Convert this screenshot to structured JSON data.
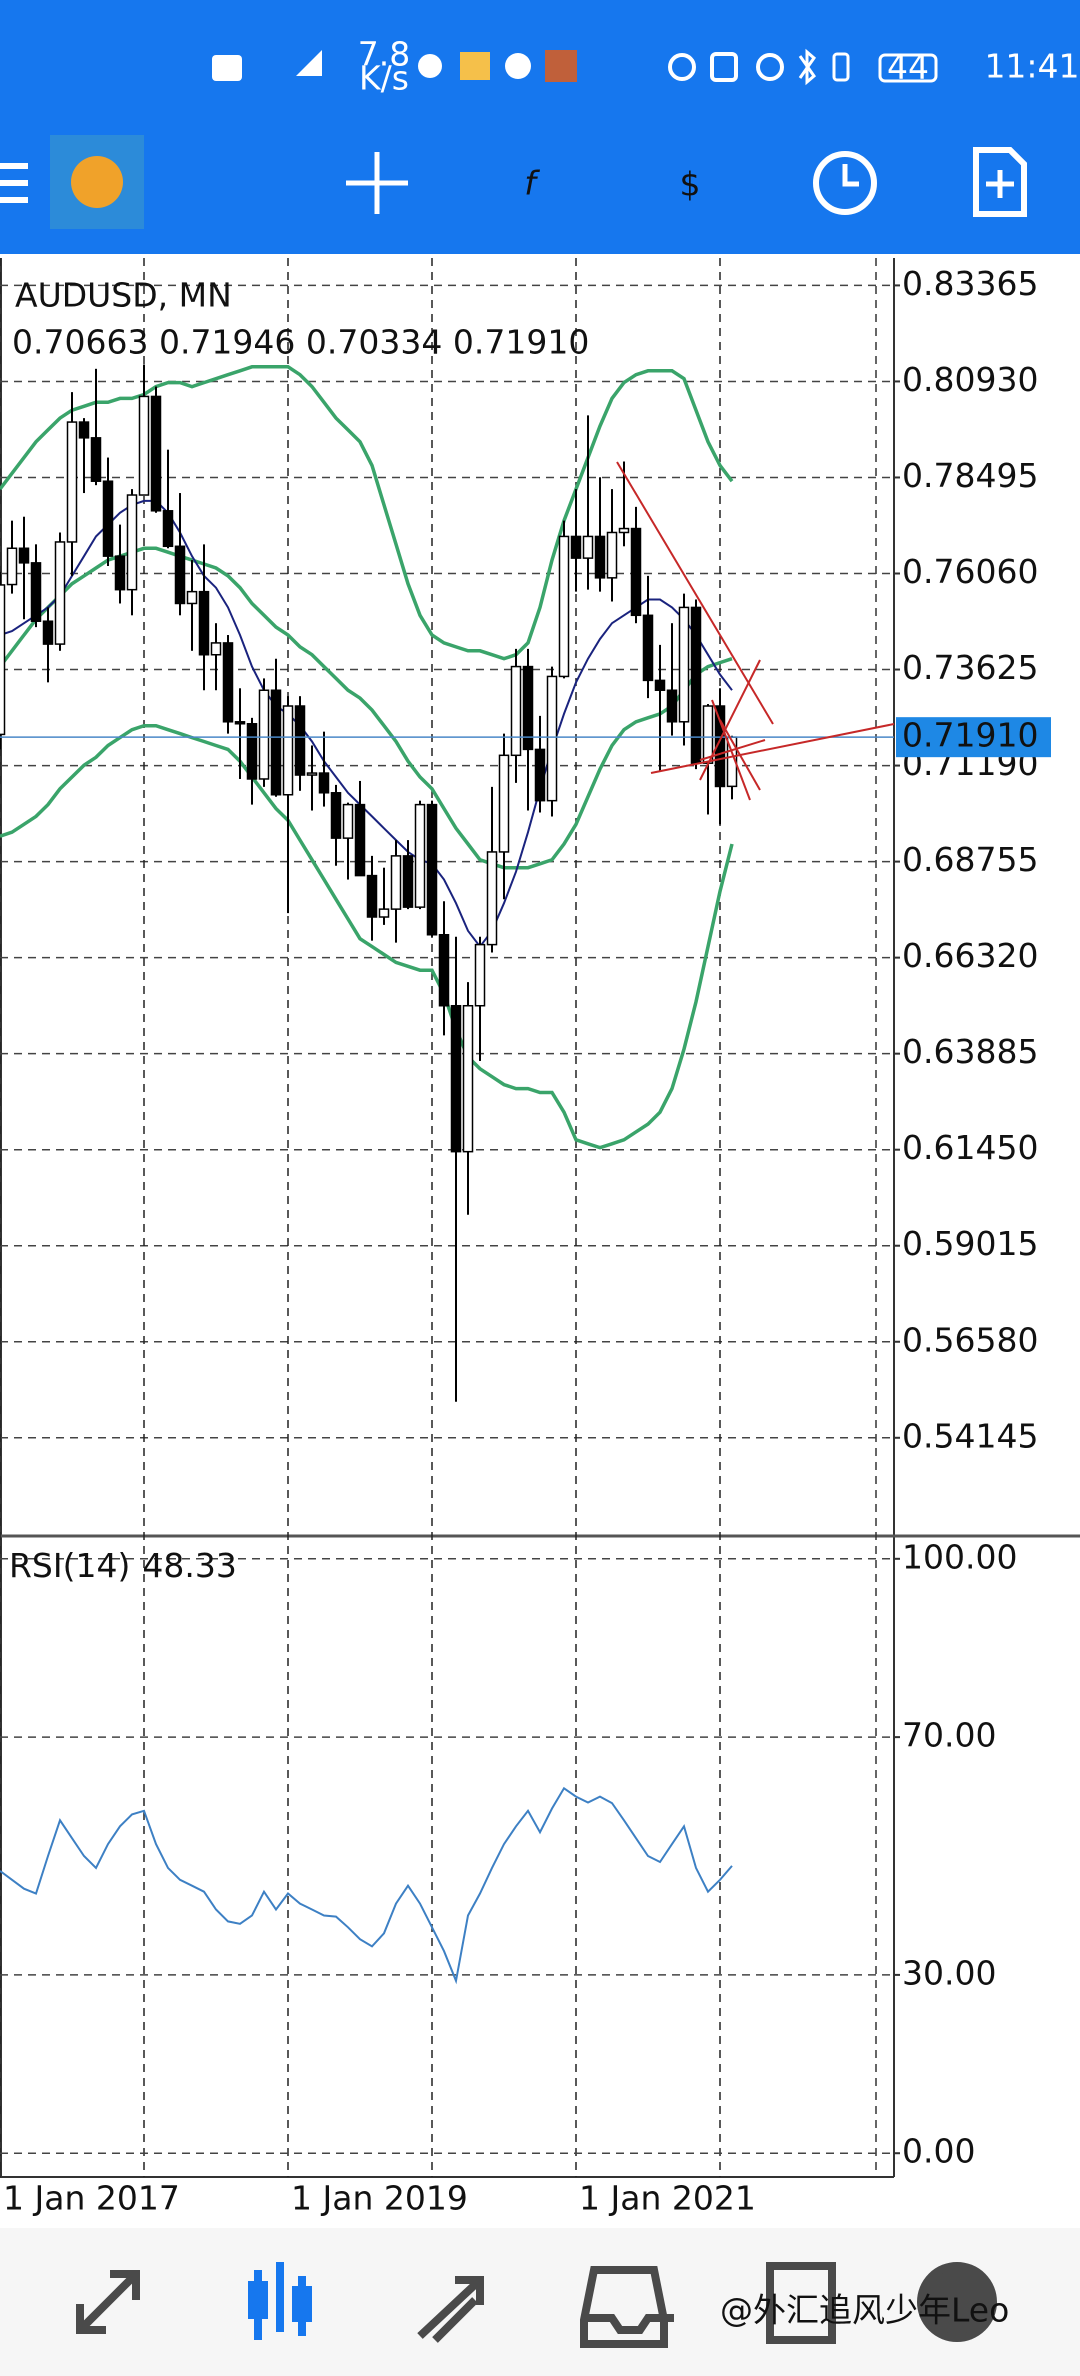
{
  "status_bar": {
    "speed": "7.8",
    "speed_unit": "K/s",
    "battery": "44",
    "time": "11:41"
  },
  "watermark": "@外汇追风少年Leo",
  "chart_data": [
    {
      "type": "candlestick",
      "title": "AUDUSD, MN",
      "ohlc_label": "0.70663 0.71946 0.70334 0.71910",
      "categories": [
        "1 Jan 2017",
        null,
        null,
        null,
        null,
        null,
        null,
        null,
        null,
        null,
        null,
        null,
        null,
        null,
        null,
        null,
        null,
        null,
        null,
        null,
        null,
        null,
        null,
        null,
        "1 Jan 2019",
        null,
        null,
        null,
        null,
        null,
        null,
        null,
        null,
        null,
        null,
        null,
        null,
        null,
        null,
        null,
        null,
        null,
        null,
        null,
        null,
        null,
        null,
        null,
        "1 Jan 2021",
        null,
        null,
        null,
        null,
        null,
        null,
        null,
        null,
        null,
        null,
        null,
        null,
        null
      ],
      "open": [
        0.7198,
        0.7578,
        0.767,
        0.7633,
        0.7485,
        0.7427,
        0.7686,
        0.799,
        0.795,
        0.784,
        0.765,
        0.7565,
        0.7805,
        0.8055,
        0.7765,
        0.7675,
        0.753,
        0.756,
        0.74,
        0.743,
        0.723,
        0.7225,
        0.7085,
        0.731,
        0.7045,
        0.727,
        0.7095,
        0.71,
        0.705,
        0.6935,
        0.702,
        0.684,
        0.6735,
        0.6755,
        0.689,
        0.676,
        0.702,
        0.669,
        0.651,
        0.614,
        0.651,
        0.6665,
        0.69,
        0.7145,
        0.737,
        0.716,
        0.703,
        0.7345,
        0.77,
        0.7645,
        0.77,
        0.7595,
        0.771,
        0.772,
        0.75,
        0.7335,
        0.731,
        0.723,
        0.752,
        0.7125,
        0.727,
        0.70663
      ],
      "high": [
        0.761,
        0.774,
        0.775,
        0.768,
        0.752,
        0.771,
        0.8066,
        0.8,
        0.8125,
        0.79,
        0.773,
        0.782,
        0.8136,
        0.808,
        0.792,
        0.781,
        0.764,
        0.768,
        0.748,
        0.745,
        0.7315,
        0.724,
        0.734,
        0.739,
        0.7295,
        0.7295,
        0.717,
        0.7205,
        0.707,
        0.7025,
        0.708,
        0.689,
        0.686,
        0.693,
        0.693,
        0.703,
        0.703,
        0.6775,
        0.6685,
        0.657,
        0.6685,
        0.7065,
        0.72,
        0.7415,
        0.7415,
        0.7245,
        0.737,
        0.774,
        0.782,
        0.8007,
        0.785,
        0.782,
        0.789,
        0.7775,
        0.76,
        0.7425,
        0.748,
        0.7555,
        0.754,
        0.7275,
        0.7315,
        0.71946
      ],
      "low": [
        0.716,
        0.7555,
        0.749,
        0.747,
        0.733,
        0.741,
        0.76,
        0.781,
        0.783,
        0.7625,
        0.753,
        0.75,
        0.781,
        0.776,
        0.767,
        0.75,
        0.741,
        0.731,
        0.731,
        0.72,
        0.7085,
        0.702,
        0.7065,
        0.704,
        0.6745,
        0.7055,
        0.7005,
        0.7015,
        0.6865,
        0.683,
        0.686,
        0.6675,
        0.6715,
        0.667,
        0.6755,
        0.6755,
        0.6685,
        0.6435,
        0.5506,
        0.598,
        0.637,
        0.6645,
        0.678,
        0.7075,
        0.7005,
        0.7,
        0.699,
        0.734,
        0.756,
        0.7565,
        0.756,
        0.7535,
        0.7675,
        0.748,
        0.729,
        0.7105,
        0.7195,
        0.717,
        0.711,
        0.6995,
        0.697,
        0.70334
      ],
      "close": [
        0.7577,
        0.767,
        0.7633,
        0.7485,
        0.7427,
        0.7686,
        0.799,
        0.795,
        0.784,
        0.765,
        0.7565,
        0.7805,
        0.8055,
        0.7765,
        0.7675,
        0.753,
        0.756,
        0.74,
        0.743,
        0.723,
        0.7225,
        0.7085,
        0.731,
        0.7045,
        0.727,
        0.7095,
        0.71,
        0.705,
        0.6935,
        0.702,
        0.684,
        0.6735,
        0.6755,
        0.689,
        0.676,
        0.702,
        0.669,
        0.651,
        0.614,
        0.651,
        0.6665,
        0.69,
        0.7145,
        0.737,
        0.716,
        0.703,
        0.7345,
        0.77,
        0.7645,
        0.77,
        0.7595,
        0.771,
        0.772,
        0.75,
        0.7335,
        0.731,
        0.723,
        0.752,
        0.7125,
        0.727,
        0.7066,
        0.7191
      ],
      "up_color": "#ffffff",
      "down_color": "#000000",
      "series": [
        {
          "color": "#3aa46a",
          "values": [
            0.782,
            0.786,
            0.79,
            0.794,
            0.797,
            0.8,
            0.802,
            0.803,
            0.804,
            0.804,
            0.805,
            0.805,
            0.806,
            0.808,
            0.809,
            0.809,
            0.808,
            0.809,
            0.81,
            0.811,
            0.812,
            0.813,
            0.813,
            0.813,
            0.813,
            0.811,
            0.808,
            0.804,
            0.8,
            0.797,
            0.794,
            0.788,
            0.778,
            0.768,
            0.758,
            0.75,
            0.745,
            0.743,
            0.742,
            0.741,
            0.741,
            0.74,
            0.739,
            0.74,
            0.743,
            0.752,
            0.764,
            0.774,
            0.782,
            0.79,
            0.798,
            0.805,
            0.809,
            0.811,
            0.812,
            0.812,
            0.812,
            0.81,
            0.802,
            0.794,
            0.788,
            0.784
          ]
        },
        {
          "color": "#3aa46a",
          "values": [
            0.737,
            0.741,
            0.745,
            0.749,
            0.752,
            0.755,
            0.758,
            0.76,
            0.762,
            0.764,
            0.765,
            0.766,
            0.767,
            0.767,
            0.766,
            0.765,
            0.764,
            0.763,
            0.762,
            0.76,
            0.757,
            0.753,
            0.75,
            0.747,
            0.745,
            0.742,
            0.74,
            0.737,
            0.734,
            0.731,
            0.729,
            0.726,
            0.722,
            0.718,
            0.713,
            0.709,
            0.706,
            0.701,
            0.696,
            0.692,
            0.688,
            0.687,
            0.686,
            0.686,
            0.686,
            0.687,
            0.688,
            0.692,
            0.697,
            0.704,
            0.711,
            0.717,
            0.721,
            0.723,
            0.724,
            0.725,
            0.727,
            0.731,
            0.735,
            0.737,
            0.738,
            0.739
          ]
        },
        {
          "color": "#3aa46a",
          "values": [
            0.694,
            0.695,
            0.697,
            0.699,
            0.702,
            0.706,
            0.709,
            0.712,
            0.714,
            0.717,
            0.719,
            0.721,
            0.722,
            0.722,
            0.721,
            0.72,
            0.719,
            0.718,
            0.717,
            0.716,
            0.713,
            0.709,
            0.705,
            0.701,
            0.698,
            0.693,
            0.688,
            0.683,
            0.678,
            0.673,
            0.668,
            0.666,
            0.664,
            0.662,
            0.661,
            0.66,
            0.66,
            0.654,
            0.645,
            0.638,
            0.635,
            0.633,
            0.631,
            0.63,
            0.63,
            0.629,
            0.629,
            0.624,
            0.617,
            0.616,
            0.615,
            0.616,
            0.617,
            0.619,
            0.621,
            0.624,
            0.63,
            0.64,
            0.652,
            0.666,
            0.68,
            0.692
          ]
        },
        {
          "color": "#1a237e",
          "values": [
            0.745,
            0.746,
            0.748,
            0.75,
            0.752,
            0.755,
            0.76,
            0.765,
            0.77,
            0.773,
            0.776,
            0.778,
            0.779,
            0.779,
            0.776,
            0.771,
            0.765,
            0.76,
            0.757,
            0.752,
            0.745,
            0.737,
            0.731,
            0.727,
            0.725,
            0.722,
            0.718,
            0.713,
            0.709,
            0.705,
            0.702,
            0.699,
            0.696,
            0.693,
            0.69,
            0.688,
            0.687,
            0.683,
            0.677,
            0.67,
            0.666,
            0.67,
            0.677,
            0.685,
            0.695,
            0.706,
            0.716,
            0.725,
            0.733,
            0.739,
            0.744,
            0.748,
            0.75,
            0.752,
            0.754,
            0.754,
            0.752,
            0.749,
            0.745,
            0.74,
            0.735,
            0.731
          ]
        }
      ],
      "current_price": {
        "value": 0.7191,
        "label": "0.71910"
      },
      "ylim": [
        0.5168,
        0.8406
      ],
      "yticks": [
        0.83365,
        {
          "value": 0.8093,
          "label": "0.80930"
        },
        0.78495,
        {
          "value": 0.7606,
          "label": "0.76060"
        },
        0.73625,
        {
          "value": 0.7119,
          "label": "0.71190"
        },
        0.68755,
        {
          "value": 0.6632,
          "label": "0.66320"
        },
        0.63885,
        {
          "value": 0.6145,
          "label": "0.61450"
        },
        0.59015,
        {
          "value": 0.5658,
          "label": "0.56580"
        },
        0.54145
      ],
      "grid": true
    },
    {
      "type": "line",
      "title": "RSI(14)",
      "series": [
        {
          "color": "#3d80c4",
          "values": [
            47.5,
            46,
            44.5,
            43.7,
            50,
            56,
            53,
            50,
            48,
            52,
            55,
            57,
            57.6,
            52,
            48,
            46,
            45,
            44,
            41,
            39,
            38.6,
            40,
            44,
            41,
            43.7,
            42,
            41,
            40,
            39.8,
            38,
            36,
            34.8,
            37,
            42,
            45,
            42,
            38,
            34,
            29,
            40,
            43.7,
            48,
            52,
            55,
            57.6,
            54,
            58,
            61.4,
            60,
            59,
            60,
            58.9,
            56,
            53,
            50,
            49,
            52,
            55,
            48,
            44,
            46,
            48.33
          ]
        }
      ],
      "ylim": [
        -4,
        103.5
      ],
      "yticks": [
        {
          "value": 100,
          "label": "100.00"
        },
        {
          "value": 70,
          "label": "70.00"
        },
        {
          "value": 30,
          "label": "30.00"
        },
        {
          "value": 0,
          "label": "0.00"
        }
      ],
      "grid": true
    }
  ]
}
